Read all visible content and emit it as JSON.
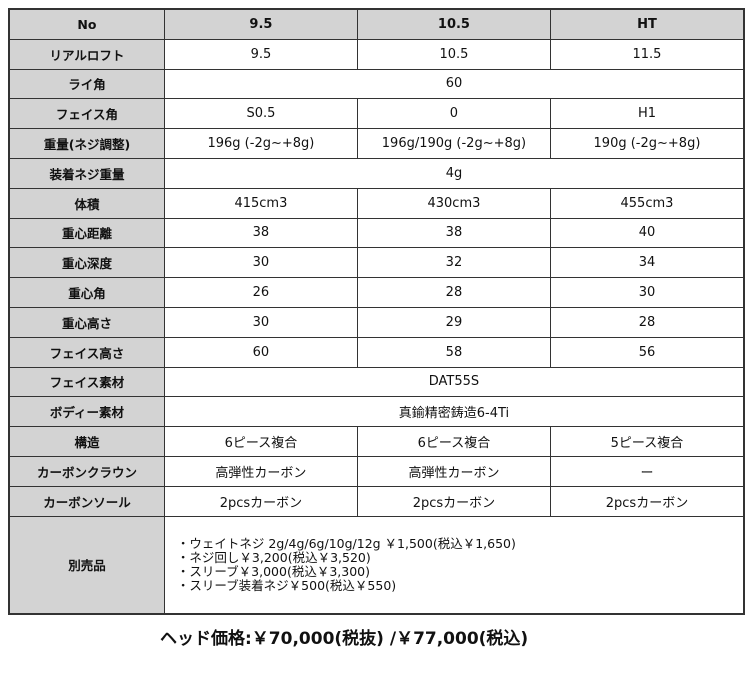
{
  "header": [
    "No",
    "9.5",
    "10.5",
    "HT"
  ],
  "rows": [
    {
      "label": "リアルロフト",
      "values": [
        "9.5",
        "10.5",
        "11.5"
      ]
    },
    {
      "label": "ライ角",
      "merged": "60"
    },
    {
      "label": "フェイス角",
      "values": [
        "S0.5",
        "0",
        "H1"
      ]
    },
    {
      "label": "重量(ネジ調整)",
      "values": [
        "196g (-2g~+8g)",
        "196g/190g (-2g~+8g)",
        "190g (-2g~+8g)"
      ]
    },
    {
      "label": "装着ネジ重量",
      "merged": "4g"
    },
    {
      "label": "体積",
      "values": [
        "415cm3",
        "430cm3",
        "455cm3"
      ]
    },
    {
      "label": "重心距離",
      "values": [
        "38",
        "38",
        "40"
      ]
    },
    {
      "label": "重心深度",
      "values": [
        "30",
        "32",
        "34"
      ]
    },
    {
      "label": "重心角",
      "values": [
        "26",
        "28",
        "30"
      ]
    },
    {
      "label": "重心高さ",
      "values": [
        "30",
        "29",
        "28"
      ]
    },
    {
      "label": "フェイス高さ",
      "values": [
        "60",
        "58",
        "56"
      ]
    },
    {
      "label": "フェイス素材",
      "merged": "DAT55S"
    },
    {
      "label": "ボディー素材",
      "merged": "真鍮精密鋳造6-4Ti"
    },
    {
      "label": "構造",
      "values": [
        "6ピース複合",
        "6ピース複合",
        "5ピース複合"
      ]
    },
    {
      "label": "カーボンクラウン",
      "values": [
        "高弾性カーボン",
        "高弾性カーボン",
        "ー"
      ]
    },
    {
      "label": "カーボンソール",
      "values": [
        "2pcsカーボン",
        "2pcsカーボン",
        "2pcsカーボン"
      ]
    }
  ],
  "accessories": {
    "label": "別売品",
    "items": [
      "・ウェイトネジ 2g/4g/6g/10g/12g ￥1,500(税込￥1,650)",
      "・ネジ回し￥3,200(税込￥3,520)",
      "・スリーブ￥3,000(税込￥3,300)",
      "・スリーブ装着ネジ￥500(税込￥550)"
    ]
  },
  "price": "ヘッド価格:￥70,000(税抜) /￥77,000(税込)"
}
